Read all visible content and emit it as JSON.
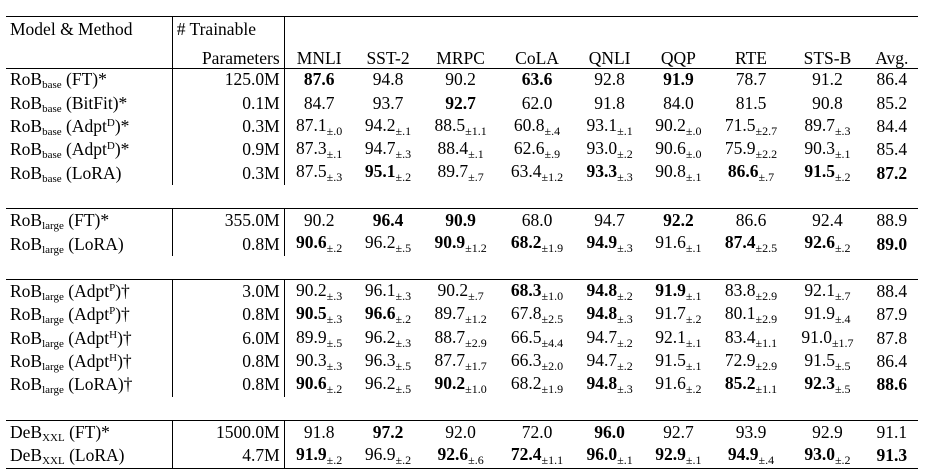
{
  "header": {
    "col_model": "Model & Method",
    "col_params_line1": "# Trainable",
    "col_params_line2": "Parameters",
    "datasets": [
      "MNLI",
      "SST-2",
      "MRPC",
      "CoLA",
      "QNLI",
      "QQP",
      "RTE",
      "STS-B",
      "Avg."
    ]
  },
  "groups": [
    {
      "rows": [
        {
          "base": "RoB",
          "sub": "base",
          "sup": "",
          "method": "(FT)*",
          "params": "125.0M",
          "cells": [
            {
              "v": "87.6",
              "b": true
            },
            {
              "v": "94.8"
            },
            {
              "v": "90.2"
            },
            {
              "v": "63.6",
              "b": true
            },
            {
              "v": "92.8"
            },
            {
              "v": "91.9",
              "b": true
            },
            {
              "v": "78.7"
            },
            {
              "v": "91.2"
            },
            {
              "v": "86.4"
            }
          ]
        },
        {
          "base": "RoB",
          "sub": "base",
          "sup": "",
          "method": "(BitFit)*",
          "params": "0.1M",
          "cells": [
            {
              "v": "84.7"
            },
            {
              "v": "93.7"
            },
            {
              "v": "92.7",
              "b": true
            },
            {
              "v": "62.0"
            },
            {
              "v": "91.8"
            },
            {
              "v": "84.0"
            },
            {
              "v": "81.5"
            },
            {
              "v": "90.8"
            },
            {
              "v": "85.2"
            }
          ]
        },
        {
          "base": "RoB",
          "sub": "base",
          "sup": "D",
          "method_pre": "(Adpt",
          "method_post": ")*",
          "params": "0.3M",
          "cells": [
            {
              "v": "87.1",
              "e": "±.0"
            },
            {
              "v": "94.2",
              "e": "±.1"
            },
            {
              "v": "88.5",
              "e": "±1.1"
            },
            {
              "v": "60.8",
              "e": "±.4"
            },
            {
              "v": "93.1",
              "e": "±.1"
            },
            {
              "v": "90.2",
              "e": "±.0"
            },
            {
              "v": "71.5",
              "e": "±2.7"
            },
            {
              "v": "89.7",
              "e": "±.3"
            },
            {
              "v": "84.4"
            }
          ]
        },
        {
          "base": "RoB",
          "sub": "base",
          "sup": "D",
          "method_pre": "(Adpt",
          "method_post": ")*",
          "params": "0.9M",
          "cells": [
            {
              "v": "87.3",
              "e": "±.1"
            },
            {
              "v": "94.7",
              "e": "±.3"
            },
            {
              "v": "88.4",
              "e": "±.1"
            },
            {
              "v": "62.6",
              "e": "±.9"
            },
            {
              "v": "93.0",
              "e": "±.2"
            },
            {
              "v": "90.6",
              "e": "±.0"
            },
            {
              "v": "75.9",
              "e": "±2.2"
            },
            {
              "v": "90.3",
              "e": "±.1"
            },
            {
              "v": "85.4"
            }
          ]
        },
        {
          "base": "RoB",
          "sub": "base",
          "sup": "",
          "method": "(LoRA)",
          "params": "0.3M",
          "cells": [
            {
              "v": "87.5",
              "e": "±.3"
            },
            {
              "v": "95.1",
              "e": "±.2",
              "b": true
            },
            {
              "v": "89.7",
              "e": "±.7"
            },
            {
              "v": "63.4",
              "e": "±1.2"
            },
            {
              "v": "93.3",
              "e": "±.3",
              "b": true
            },
            {
              "v": "90.8",
              "e": "±.1"
            },
            {
              "v": "86.6",
              "e": "±.7",
              "b": true
            },
            {
              "v": "91.5",
              "e": "±.2",
              "b": true
            },
            {
              "v": "87.2",
              "b": true
            }
          ]
        }
      ]
    },
    {
      "rows": [
        {
          "base": "RoB",
          "sub": "large",
          "sup": "",
          "method": "(FT)*",
          "params": "355.0M",
          "cells": [
            {
              "v": "90.2"
            },
            {
              "v": "96.4",
              "b": true
            },
            {
              "v": "90.9",
              "b": true
            },
            {
              "v": "68.0"
            },
            {
              "v": "94.7"
            },
            {
              "v": "92.2",
              "b": true
            },
            {
              "v": "86.6"
            },
            {
              "v": "92.4"
            },
            {
              "v": "88.9"
            }
          ]
        },
        {
          "base": "RoB",
          "sub": "large",
          "sup": "",
          "method": "(LoRA)",
          "params": "0.8M",
          "cells": [
            {
              "v": "90.6",
              "e": "±.2",
              "b": true
            },
            {
              "v": "96.2",
              "e": "±.5"
            },
            {
              "v": "90.9",
              "e": "±1.2",
              "b": true
            },
            {
              "v": "68.2",
              "e": "±1.9",
              "b": true
            },
            {
              "v": "94.9",
              "e": "±.3",
              "b": true
            },
            {
              "v": "91.6",
              "e": "±.1"
            },
            {
              "v": "87.4",
              "e": "±2.5",
              "b": true
            },
            {
              "v": "92.6",
              "e": "±.2",
              "b": true
            },
            {
              "v": "89.0",
              "b": true
            }
          ]
        }
      ]
    },
    {
      "rows": [
        {
          "base": "RoB",
          "sub": "large",
          "sup": "P",
          "method_pre": "(Adpt",
          "method_post": ")†",
          "params": "3.0M",
          "cells": [
            {
              "v": "90.2",
              "e": "±.3"
            },
            {
              "v": "96.1",
              "e": "±.3"
            },
            {
              "v": "90.2",
              "e": "±.7"
            },
            {
              "v": "68.3",
              "e": "±1.0",
              "b": true
            },
            {
              "v": "94.8",
              "e": "±.2",
              "b": true
            },
            {
              "v": "91.9",
              "e": "±.1",
              "b": true
            },
            {
              "v": "83.8",
              "e": "±2.9"
            },
            {
              "v": "92.1",
              "e": "±.7"
            },
            {
              "v": "88.4"
            }
          ]
        },
        {
          "base": "RoB",
          "sub": "large",
          "sup": "P",
          "method_pre": "(Adpt",
          "method_post": ")†",
          "params": "0.8M",
          "cells": [
            {
              "v": "90.5",
              "e": "±.3",
              "b": true
            },
            {
              "v": "96.6",
              "e": "±.2",
              "b": true
            },
            {
              "v": "89.7",
              "e": "±1.2"
            },
            {
              "v": "67.8",
              "e": "±2.5"
            },
            {
              "v": "94.8",
              "e": "±.3",
              "b": true
            },
            {
              "v": "91.7",
              "e": "±.2"
            },
            {
              "v": "80.1",
              "e": "±2.9"
            },
            {
              "v": "91.9",
              "e": "±.4"
            },
            {
              "v": "87.9"
            }
          ]
        },
        {
          "base": "RoB",
          "sub": "large",
          "sup": "H",
          "method_pre": "(Adpt",
          "method_post": ")†",
          "params": "6.0M",
          "cells": [
            {
              "v": "89.9",
              "e": "±.5"
            },
            {
              "v": "96.2",
              "e": "±.3"
            },
            {
              "v": "88.7",
              "e": "±2.9"
            },
            {
              "v": "66.5",
              "e": "±4.4"
            },
            {
              "v": "94.7",
              "e": "±.2"
            },
            {
              "v": "92.1",
              "e": "±.1"
            },
            {
              "v": "83.4",
              "e": "±1.1"
            },
            {
              "v": "91.0",
              "e": "±1.7"
            },
            {
              "v": "87.8"
            }
          ]
        },
        {
          "base": "RoB",
          "sub": "large",
          "sup": "H",
          "method_pre": "(Adpt",
          "method_post": ")†",
          "params": "0.8M",
          "cells": [
            {
              "v": "90.3",
              "e": "±.3"
            },
            {
              "v": "96.3",
              "e": "±.5"
            },
            {
              "v": "87.7",
              "e": "±1.7"
            },
            {
              "v": "66.3",
              "e": "±2.0"
            },
            {
              "v": "94.7",
              "e": "±.2"
            },
            {
              "v": "91.5",
              "e": "±.1"
            },
            {
              "v": "72.9",
              "e": "±2.9"
            },
            {
              "v": "91.5",
              "e": "±.5"
            },
            {
              "v": "86.4"
            }
          ]
        },
        {
          "base": "RoB",
          "sub": "large",
          "sup": "",
          "method": "(LoRA)†",
          "params": "0.8M",
          "cells": [
            {
              "v": "90.6",
              "e": "±.2",
              "b": true
            },
            {
              "v": "96.2",
              "e": "±.5"
            },
            {
              "v": "90.2",
              "e": "±1.0",
              "b": true
            },
            {
              "v": "68.2",
              "e": "±1.9"
            },
            {
              "v": "94.8",
              "e": "±.3",
              "b": true
            },
            {
              "v": "91.6",
              "e": "±.2"
            },
            {
              "v": "85.2",
              "e": "±1.1",
              "b": true
            },
            {
              "v": "92.3",
              "e": "±.5",
              "b": true
            },
            {
              "v": "88.6",
              "b": true
            }
          ]
        }
      ]
    },
    {
      "rows": [
        {
          "base": "DeB",
          "sub": "XXL",
          "sup": "",
          "method": "(FT)*",
          "params": "1500.0M",
          "cells": [
            {
              "v": "91.8"
            },
            {
              "v": "97.2",
              "b": true
            },
            {
              "v": "92.0"
            },
            {
              "v": "72.0"
            },
            {
              "v": "96.0",
              "b": true
            },
            {
              "v": "92.7"
            },
            {
              "v": "93.9"
            },
            {
              "v": "92.9"
            },
            {
              "v": "91.1"
            }
          ]
        },
        {
          "base": "DeB",
          "sub": "XXL",
          "sup": "",
          "method": "(LoRA)",
          "params": "4.7M",
          "cells": [
            {
              "v": "91.9",
              "e": "±.2",
              "b": true
            },
            {
              "v": "96.9",
              "e": "±.2"
            },
            {
              "v": "92.6",
              "e": "±.6",
              "b": true
            },
            {
              "v": "72.4",
              "e": "±1.1",
              "b": true
            },
            {
              "v": "96.0",
              "e": "±.1",
              "b": true
            },
            {
              "v": "92.9",
              "e": "±.1",
              "b": true
            },
            {
              "v": "94.9",
              "e": "±.4",
              "b": true
            },
            {
              "v": "93.0",
              "e": "±.2",
              "b": true
            },
            {
              "v": "91.3",
              "b": true
            }
          ]
        }
      ]
    }
  ]
}
